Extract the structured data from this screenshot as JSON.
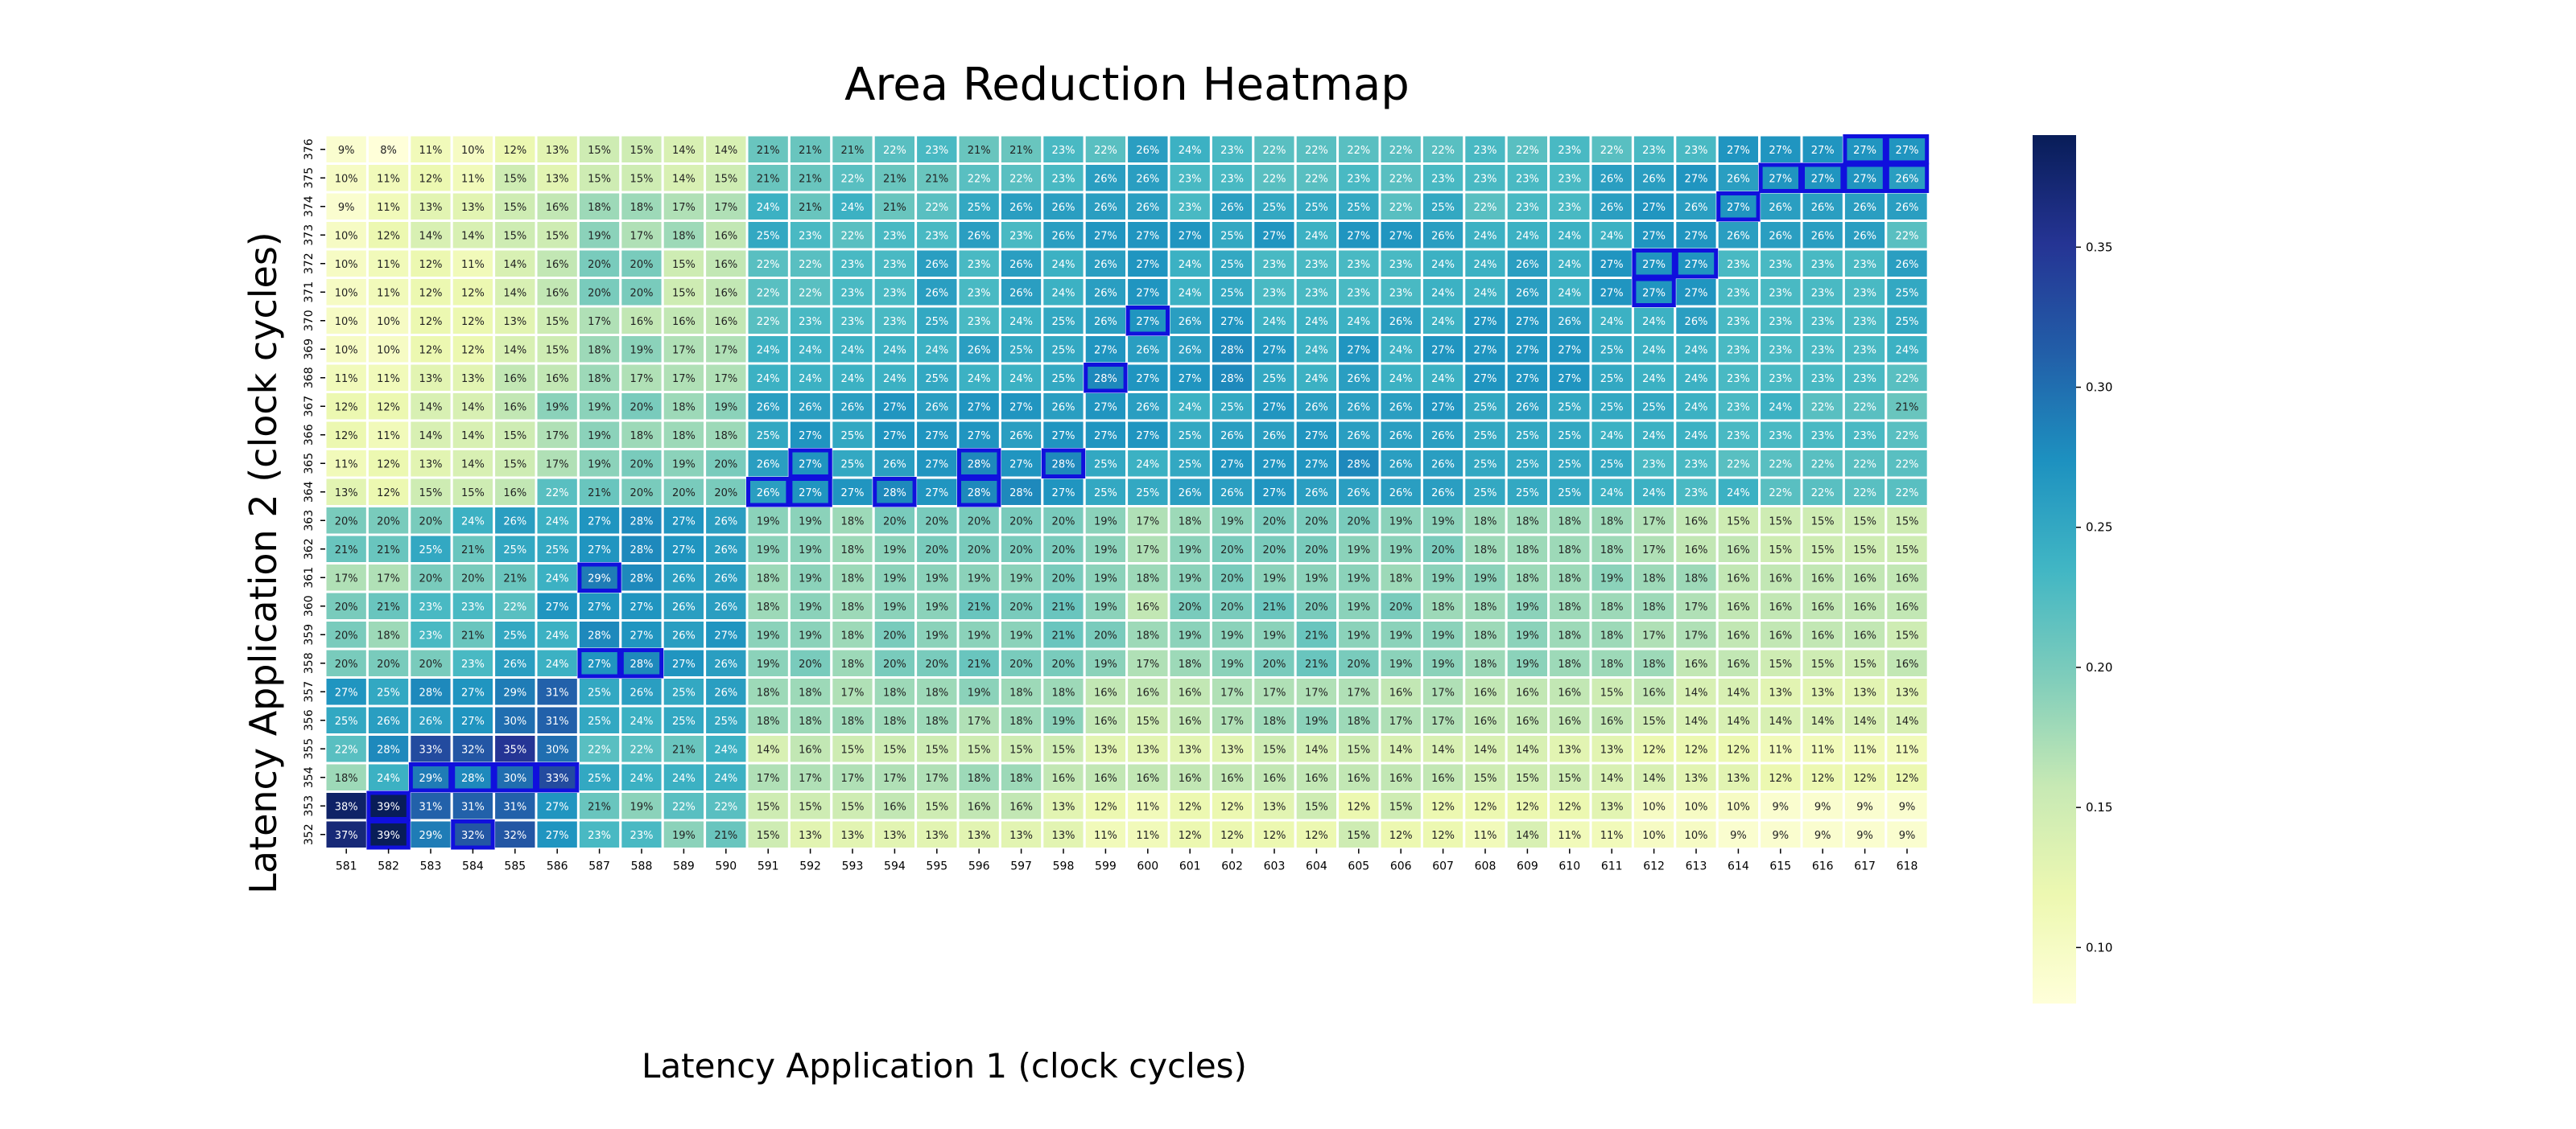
{
  "chart_data": {
    "type": "heatmap",
    "title": "Area Reduction Heatmap",
    "xlabel": "Latency Application 1 (clock cycles)",
    "ylabel": "Latency Application 2 (clock cycles)",
    "x_labels": [
      "581",
      "582",
      "583",
      "584",
      "585",
      "586",
      "587",
      "588",
      "589",
      "590",
      "591",
      "592",
      "593",
      "594",
      "595",
      "596",
      "597",
      "598",
      "599",
      "600",
      "601",
      "602",
      "603",
      "604",
      "605",
      "606",
      "607",
      "608",
      "609",
      "610",
      "611",
      "612",
      "613",
      "614",
      "615",
      "616",
      "617",
      "618"
    ],
    "y_labels": [
      "376",
      "375",
      "374",
      "373",
      "372",
      "371",
      "370",
      "369",
      "368",
      "367",
      "366",
      "365",
      "364",
      "363",
      "362",
      "361",
      "360",
      "359",
      "358",
      "357",
      "356",
      "355",
      "354",
      "353",
      "352"
    ],
    "values": [
      [
        9,
        8,
        11,
        10,
        12,
        13,
        15,
        15,
        14,
        14,
        21,
        21,
        21,
        22,
        23,
        21,
        21,
        23,
        22,
        26,
        24,
        23,
        22,
        22,
        22,
        22,
        22,
        23,
        22,
        23,
        22,
        23,
        23,
        27,
        27,
        27,
        27,
        27
      ],
      [
        10,
        11,
        12,
        11,
        15,
        13,
        15,
        15,
        14,
        15,
        21,
        21,
        22,
        21,
        21,
        22,
        22,
        23,
        26,
        26,
        23,
        23,
        22,
        22,
        23,
        22,
        23,
        23,
        23,
        23,
        26,
        26,
        27,
        26,
        27,
        27,
        27,
        26
      ],
      [
        9,
        11,
        13,
        13,
        15,
        16,
        18,
        18,
        17,
        17,
        24,
        21,
        24,
        21,
        22,
        25,
        26,
        26,
        26,
        26,
        23,
        26,
        25,
        25,
        25,
        22,
        25,
        22,
        23,
        23,
        26,
        27,
        26,
        27,
        26,
        26,
        26,
        26
      ],
      [
        10,
        12,
        14,
        14,
        15,
        15,
        19,
        17,
        18,
        16,
        25,
        23,
        22,
        23,
        23,
        26,
        23,
        26,
        27,
        27,
        27,
        25,
        27,
        24,
        27,
        27,
        26,
        24,
        24,
        24,
        24,
        27,
        27,
        26,
        26,
        26,
        26,
        22
      ],
      [
        10,
        11,
        12,
        11,
        14,
        16,
        20,
        20,
        15,
        16,
        22,
        22,
        23,
        23,
        26,
        23,
        26,
        24,
        26,
        27,
        24,
        25,
        23,
        23,
        23,
        23,
        24,
        24,
        26,
        24,
        27,
        27,
        27,
        23,
        23,
        23,
        23,
        26
      ],
      [
        10,
        11,
        12,
        12,
        14,
        16,
        20,
        20,
        15,
        16,
        22,
        22,
        23,
        23,
        26,
        23,
        26,
        24,
        26,
        27,
        24,
        25,
        23,
        23,
        23,
        23,
        24,
        24,
        26,
        24,
        27,
        27,
        27,
        23,
        23,
        23,
        23,
        25
      ],
      [
        10,
        10,
        12,
        12,
        13,
        15,
        17,
        16,
        16,
        16,
        22,
        23,
        23,
        23,
        25,
        23,
        24,
        25,
        26,
        27,
        26,
        27,
        24,
        24,
        24,
        26,
        24,
        27,
        27,
        26,
        24,
        24,
        26,
        23,
        23,
        23,
        23,
        25
      ],
      [
        10,
        10,
        12,
        12,
        14,
        15,
        18,
        19,
        17,
        17,
        24,
        24,
        24,
        24,
        24,
        26,
        25,
        25,
        27,
        26,
        26,
        28,
        27,
        24,
        27,
        24,
        27,
        27,
        27,
        27,
        25,
        24,
        24,
        23,
        23,
        23,
        23,
        24
      ],
      [
        11,
        11,
        13,
        13,
        16,
        16,
        18,
        17,
        17,
        17,
        24,
        24,
        24,
        24,
        25,
        24,
        24,
        25,
        28,
        27,
        27,
        28,
        25,
        24,
        26,
        24,
        24,
        27,
        27,
        27,
        25,
        24,
        24,
        23,
        23,
        23,
        23,
        22
      ],
      [
        12,
        12,
        14,
        14,
        16,
        19,
        19,
        20,
        18,
        19,
        26,
        26,
        26,
        27,
        26,
        27,
        27,
        26,
        27,
        26,
        24,
        25,
        27,
        26,
        26,
        26,
        27,
        25,
        26,
        25,
        25,
        25,
        24,
        23,
        24,
        22,
        22,
        21
      ],
      [
        12,
        11,
        14,
        14,
        15,
        17,
        19,
        18,
        18,
        18,
        25,
        27,
        25,
        27,
        27,
        27,
        26,
        27,
        27,
        27,
        25,
        26,
        26,
        27,
        26,
        26,
        26,
        25,
        25,
        25,
        24,
        24,
        24,
        23,
        23,
        23,
        23,
        22
      ],
      [
        11,
        12,
        13,
        14,
        15,
        17,
        19,
        20,
        19,
        20,
        26,
        27,
        25,
        26,
        27,
        28,
        27,
        28,
        25,
        24,
        25,
        27,
        27,
        27,
        28,
        26,
        26,
        25,
        25,
        25,
        25,
        23,
        23,
        22,
        22,
        22,
        22,
        22
      ],
      [
        13,
        12,
        15,
        15,
        16,
        22,
        21,
        20,
        20,
        20,
        26,
        27,
        27,
        28,
        27,
        28,
        28,
        27,
        25,
        25,
        26,
        26,
        27,
        26,
        26,
        26,
        26,
        25,
        25,
        25,
        24,
        24,
        23,
        24,
        22,
        22,
        22,
        22
      ],
      [
        20,
        20,
        20,
        24,
        26,
        24,
        27,
        28,
        27,
        26,
        19,
        19,
        18,
        20,
        20,
        20,
        20,
        20,
        19,
        17,
        18,
        19,
        20,
        20,
        20,
        19,
        19,
        18,
        18,
        18,
        18,
        17,
        16,
        15,
        15,
        15,
        15,
        15
      ],
      [
        21,
        21,
        25,
        21,
        25,
        25,
        27,
        28,
        27,
        26,
        19,
        19,
        18,
        19,
        20,
        20,
        20,
        20,
        19,
        17,
        19,
        20,
        20,
        20,
        19,
        19,
        20,
        18,
        18,
        18,
        18,
        17,
        16,
        16,
        15,
        15,
        15,
        15
      ],
      [
        17,
        17,
        20,
        20,
        21,
        24,
        29,
        28,
        26,
        26,
        18,
        19,
        18,
        19,
        19,
        19,
        19,
        20,
        19,
        18,
        19,
        20,
        19,
        19,
        19,
        18,
        19,
        19,
        18,
        18,
        19,
        18,
        18,
        16,
        16,
        16,
        16,
        16
      ],
      [
        20,
        21,
        23,
        23,
        22,
        27,
        27,
        27,
        26,
        26,
        18,
        19,
        18,
        19,
        19,
        21,
        20,
        21,
        19,
        16,
        20,
        20,
        21,
        20,
        19,
        20,
        18,
        18,
        19,
        18,
        18,
        18,
        17,
        16,
        16,
        16,
        16,
        16
      ],
      [
        20,
        18,
        23,
        21,
        25,
        24,
        28,
        27,
        26,
        27,
        19,
        19,
        18,
        20,
        19,
        19,
        19,
        21,
        20,
        18,
        19,
        19,
        19,
        21,
        19,
        19,
        19,
        18,
        19,
        18,
        18,
        17,
        17,
        16,
        16,
        16,
        16,
        15
      ],
      [
        20,
        20,
        20,
        23,
        26,
        24,
        27,
        28,
        27,
        26,
        19,
        20,
        18,
        20,
        20,
        21,
        20,
        20,
        19,
        17,
        18,
        19,
        20,
        21,
        20,
        19,
        19,
        18,
        19,
        18,
        18,
        18,
        16,
        16,
        15,
        15,
        15,
        16
      ],
      [
        27,
        25,
        28,
        27,
        29,
        31,
        25,
        26,
        25,
        26,
        18,
        18,
        17,
        18,
        18,
        19,
        18,
        18,
        16,
        16,
        16,
        17,
        17,
        17,
        17,
        16,
        17,
        16,
        16,
        16,
        15,
        16,
        14,
        14,
        13,
        13,
        13,
        13
      ],
      [
        25,
        26,
        26,
        27,
        30,
        31,
        25,
        24,
        25,
        25,
        18,
        18,
        18,
        18,
        18,
        17,
        18,
        19,
        16,
        15,
        16,
        17,
        18,
        19,
        18,
        17,
        17,
        16,
        16,
        16,
        16,
        15,
        14,
        14,
        14,
        14,
        14,
        14
      ],
      [
        22,
        28,
        33,
        32,
        35,
        30,
        22,
        22,
        21,
        24,
        14,
        16,
        15,
        15,
        15,
        15,
        15,
        15,
        13,
        13,
        13,
        13,
        15,
        14,
        15,
        14,
        14,
        14,
        14,
        13,
        13,
        12,
        12,
        12,
        11,
        11,
        11,
        11
      ],
      [
        18,
        24,
        29,
        28,
        30,
        33,
        25,
        24,
        24,
        24,
        17,
        17,
        17,
        17,
        17,
        18,
        18,
        16,
        16,
        16,
        16,
        16,
        16,
        16,
        16,
        16,
        16,
        15,
        15,
        15,
        14,
        14,
        13,
        13,
        12,
        12,
        12,
        12
      ],
      [
        38,
        39,
        31,
        31,
        31,
        27,
        21,
        19,
        22,
        22,
        15,
        15,
        15,
        16,
        15,
        16,
        16,
        13,
        12,
        11,
        12,
        12,
        13,
        15,
        12,
        15,
        12,
        12,
        12,
        12,
        13,
        10,
        10,
        10,
        9,
        9,
        9,
        9
      ],
      [
        37,
        39,
        29,
        32,
        32,
        27,
        23,
        23,
        19,
        21,
        15,
        13,
        13,
        13,
        13,
        13,
        13,
        13,
        11,
        11,
        12,
        12,
        12,
        12,
        15,
        12,
        12,
        11,
        14,
        11,
        11,
        10,
        10,
        9,
        9,
        9,
        9,
        9
      ]
    ],
    "highlighted_cells": [
      [
        "617",
        "376"
      ],
      [
        "618",
        "376"
      ],
      [
        "615",
        "375"
      ],
      [
        "616",
        "375"
      ],
      [
        "617",
        "375"
      ],
      [
        "618",
        "375"
      ],
      [
        "614",
        "374"
      ],
      [
        "612",
        "372"
      ],
      [
        "613",
        "372"
      ],
      [
        "612",
        "371"
      ],
      [
        "600",
        "370"
      ],
      [
        "599",
        "368"
      ],
      [
        "592",
        "365"
      ],
      [
        "596",
        "365"
      ],
      [
        "598",
        "365"
      ],
      [
        "591",
        "364"
      ],
      [
        "592",
        "364"
      ],
      [
        "594",
        "364"
      ],
      [
        "596",
        "364"
      ],
      [
        "587",
        "361"
      ],
      [
        "587",
        "358"
      ],
      [
        "588",
        "358"
      ],
      [
        "583",
        "354"
      ],
      [
        "584",
        "354"
      ],
      [
        "585",
        "354"
      ],
      [
        "586",
        "354"
      ],
      [
        "582",
        "353"
      ],
      [
        "582",
        "352"
      ],
      [
        "584",
        "352"
      ]
    ],
    "colorbar": {
      "colormap": "YlGnBu",
      "range": [
        0.08,
        0.39
      ],
      "ticks": [
        "0.10",
        "0.15",
        "0.20",
        "0.25",
        "0.30",
        "0.35"
      ]
    },
    "highlight_color": "#1010dd",
    "cell_border_color": "#ffffff"
  }
}
